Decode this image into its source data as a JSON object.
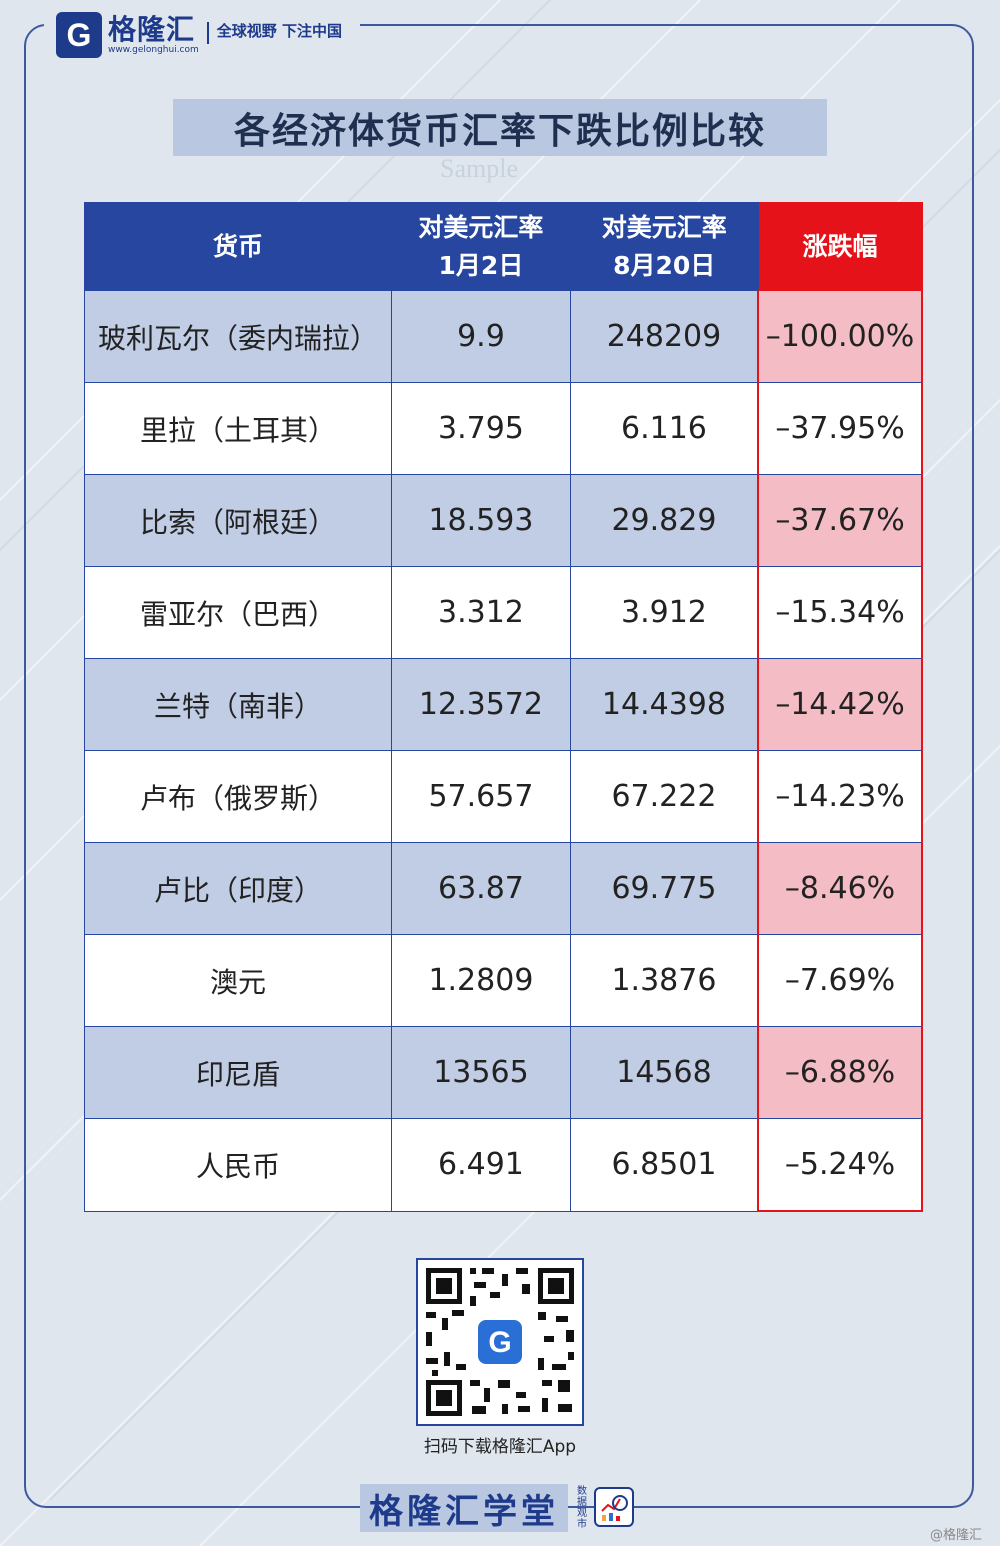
{
  "brand": {
    "logo_letter": "G",
    "name": "格隆汇",
    "domain": "www.gelonghui.com",
    "slogan": "全球视野 下注中国"
  },
  "title": "各经济体货币汇率下跌比例比较",
  "sample_mark": "Sample",
  "table": {
    "headers": {
      "currency": "货币",
      "rate_jan_line1": "对美元汇率",
      "rate_jan_line2": "1月2日",
      "rate_aug_line1": "对美元汇率",
      "rate_aug_line2": "8月20日",
      "change": "涨跌幅"
    },
    "rows": [
      {
        "currency": "玻利瓦尔（委内瑞拉）",
        "jan2": "9.9",
        "aug20": "248209",
        "change": "–100.00%"
      },
      {
        "currency": "里拉（土耳其）",
        "jan2": "3.795",
        "aug20": "6.116",
        "change": "–37.95%"
      },
      {
        "currency": "比索（阿根廷）",
        "jan2": "18.593",
        "aug20": "29.829",
        "change": "–37.67%"
      },
      {
        "currency": "雷亚尔（巴西）",
        "jan2": "3.312",
        "aug20": "3.912",
        "change": "–15.34%"
      },
      {
        "currency": "兰特（南非）",
        "jan2": "12.3572",
        "aug20": "14.4398",
        "change": "–14.42%"
      },
      {
        "currency": "卢布（俄罗斯）",
        "jan2": "57.657",
        "aug20": "67.222",
        "change": "–14.23%"
      },
      {
        "currency": "卢比（印度）",
        "jan2": "63.87",
        "aug20": "69.775",
        "change": "–8.46%"
      },
      {
        "currency": "澳元",
        "jan2": "1.2809",
        "aug20": "1.3876",
        "change": "–7.69%"
      },
      {
        "currency": "印尼盾",
        "jan2": "13565",
        "aug20": "14568",
        "change": "–6.88%"
      },
      {
        "currency": "人民币",
        "jan2": "6.491",
        "aug20": "6.8501",
        "change": "–5.24%"
      }
    ]
  },
  "watermark": {
    "text": "格隆汇",
    "url": "www.gelonghui.com"
  },
  "qr": {
    "caption": "扫码下载格隆汇App",
    "center_letter": "G"
  },
  "footer": {
    "brand": "格隆汇学堂",
    "sub": "数据观市"
  },
  "credit": "@格隆汇",
  "colors": {
    "header_blue": "#2746a0",
    "change_red": "#e5121a",
    "row_shade": "#c0cde4",
    "change_shade": "#f4bcc4"
  }
}
